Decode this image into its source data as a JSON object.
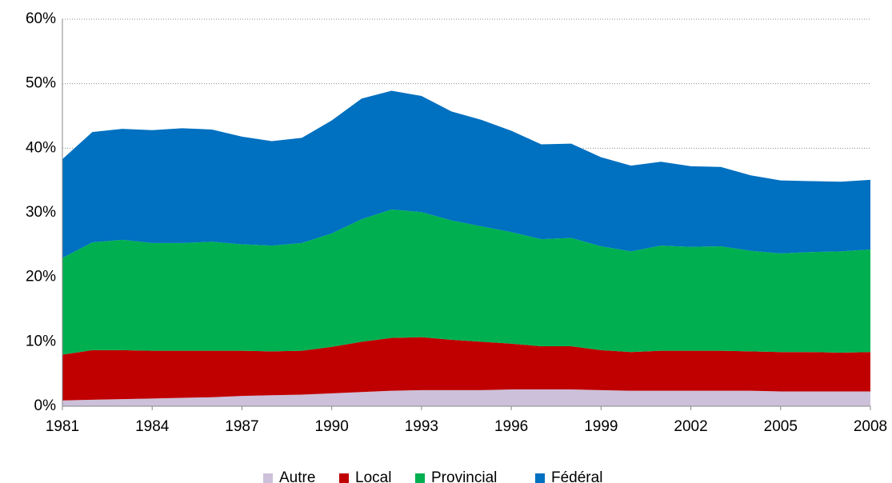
{
  "chart_data": {
    "type": "stacked_area",
    "x": [
      1981,
      1982,
      1983,
      1984,
      1985,
      1986,
      1987,
      1988,
      1989,
      1990,
      1991,
      1992,
      1993,
      1994,
      1995,
      1996,
      1997,
      1998,
      1999,
      2000,
      2001,
      2002,
      2003,
      2004,
      2005,
      2006,
      2007,
      2008
    ],
    "xlim": [
      1981,
      2008
    ],
    "xticks": [
      1981,
      1984,
      1987,
      1990,
      1993,
      1996,
      1999,
      2002,
      2005,
      2008
    ],
    "ylim": [
      0,
      60
    ],
    "yticks": [
      {
        "value": 0,
        "label": "0%"
      },
      {
        "value": 10,
        "label": "10%"
      },
      {
        "value": 20,
        "label": "20%"
      },
      {
        "value": 30,
        "label": "30%"
      },
      {
        "value": 40,
        "label": "40%"
      },
      {
        "value": 50,
        "label": "50%"
      },
      {
        "value": 60,
        "label": "60%"
      }
    ],
    "grid": true,
    "legend": "bottom",
    "series": [
      {
        "name": "Autre",
        "color": "#ccc0da",
        "values": [
          0.9,
          1.0,
          1.1,
          1.2,
          1.3,
          1.4,
          1.6,
          1.7,
          1.8,
          2.0,
          2.2,
          2.4,
          2.5,
          2.5,
          2.5,
          2.6,
          2.6,
          2.6,
          2.5,
          2.4,
          2.4,
          2.4,
          2.4,
          2.4,
          2.3,
          2.3,
          2.3,
          2.3
        ]
      },
      {
        "name": "Local",
        "color": "#c00000",
        "values": [
          7.1,
          7.7,
          7.6,
          7.4,
          7.3,
          7.2,
          7.0,
          6.8,
          6.8,
          7.2,
          7.8,
          8.2,
          8.2,
          7.8,
          7.5,
          7.1,
          6.7,
          6.7,
          6.2,
          6.0,
          6.2,
          6.2,
          6.2,
          6.1,
          6.1,
          6.1,
          6.0,
          6.1
        ]
      },
      {
        "name": "Provincial",
        "color": "#00b050",
        "values": [
          15.0,
          16.7,
          17.1,
          16.7,
          16.7,
          16.9,
          16.5,
          16.4,
          16.7,
          17.6,
          19.0,
          19.9,
          19.4,
          18.5,
          17.9,
          17.3,
          16.6,
          16.8,
          16.1,
          15.6,
          16.3,
          16.1,
          16.2,
          15.6,
          15.3,
          15.5,
          15.7,
          15.9
        ]
      },
      {
        "name": "Fédéral",
        "color": "#0070c0",
        "values": [
          15.3,
          17.1,
          17.2,
          17.5,
          17.8,
          17.4,
          16.7,
          16.2,
          16.3,
          17.5,
          18.7,
          18.4,
          18.0,
          16.9,
          16.5,
          15.7,
          14.7,
          14.6,
          13.8,
          13.3,
          13.0,
          12.5,
          12.3,
          11.7,
          11.3,
          11.0,
          10.8,
          10.8
        ]
      }
    ]
  }
}
